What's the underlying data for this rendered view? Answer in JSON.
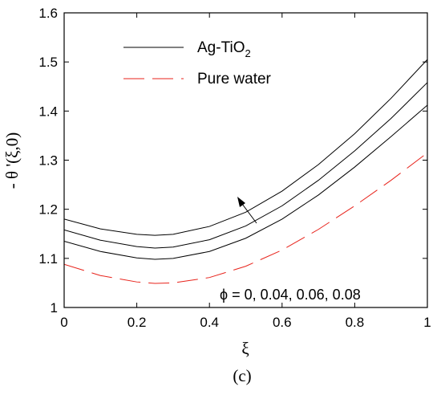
{
  "chart_data": {
    "type": "line",
    "xlabel": "ξ",
    "ylabel": "- θ '(ξ,0)",
    "xlim": [
      0,
      1
    ],
    "ylim": [
      1,
      1.6
    ],
    "xticks": [
      "0",
      "0.2",
      "0.4",
      "0.6",
      "0.8",
      "1"
    ],
    "yticks": [
      "1",
      "1.1",
      "1.2",
      "1.3",
      "1.4",
      "1.5",
      "1.6"
    ],
    "grid": false,
    "legend_position": "top-left",
    "panel_label": "(c)",
    "annotation": "ϕ = 0, 0.04, 0.06, 0.08",
    "legend": [
      {
        "label_main": "Ag-TiO",
        "label_sub": "2",
        "style": "solid",
        "color": "#000000"
      },
      {
        "label_main": "Pure water",
        "label_sub": "",
        "style": "dashed",
        "color": "#e8231b"
      }
    ],
    "series": [
      {
        "group": "Pure water",
        "style": "dashed",
        "color": "#e8231b",
        "x": [
          0,
          0.1,
          0.2,
          0.25,
          0.3,
          0.4,
          0.5,
          0.6,
          0.7,
          0.8,
          0.9,
          1.0
        ],
        "y": [
          1.088,
          1.065,
          1.052,
          1.049,
          1.05,
          1.061,
          1.084,
          1.117,
          1.159,
          1.207,
          1.259,
          1.315
        ]
      },
      {
        "group": "Ag-TiO2",
        "style": "solid",
        "color": "#000000",
        "x": [
          0,
          0.1,
          0.2,
          0.25,
          0.3,
          0.4,
          0.5,
          0.6,
          0.7,
          0.8,
          0.9,
          1.0
        ],
        "y": [
          1.135,
          1.114,
          1.101,
          1.098,
          1.1,
          1.114,
          1.141,
          1.18,
          1.229,
          1.286,
          1.348,
          1.412
        ]
      },
      {
        "group": "Ag-TiO2",
        "style": "solid",
        "color": "#000000",
        "x": [
          0,
          0.1,
          0.2,
          0.25,
          0.3,
          0.4,
          0.5,
          0.6,
          0.7,
          0.8,
          0.9,
          1.0
        ],
        "y": [
          1.158,
          1.137,
          1.124,
          1.121,
          1.123,
          1.138,
          1.166,
          1.207,
          1.259,
          1.319,
          1.385,
          1.458
        ]
      },
      {
        "group": "Ag-TiO2",
        "style": "solid",
        "color": "#000000",
        "x": [
          0,
          0.1,
          0.2,
          0.25,
          0.3,
          0.4,
          0.5,
          0.6,
          0.7,
          0.8,
          0.9,
          1.0
        ],
        "y": [
          1.18,
          1.16,
          1.149,
          1.147,
          1.149,
          1.165,
          1.194,
          1.237,
          1.291,
          1.354,
          1.426,
          1.505
        ]
      }
    ]
  }
}
